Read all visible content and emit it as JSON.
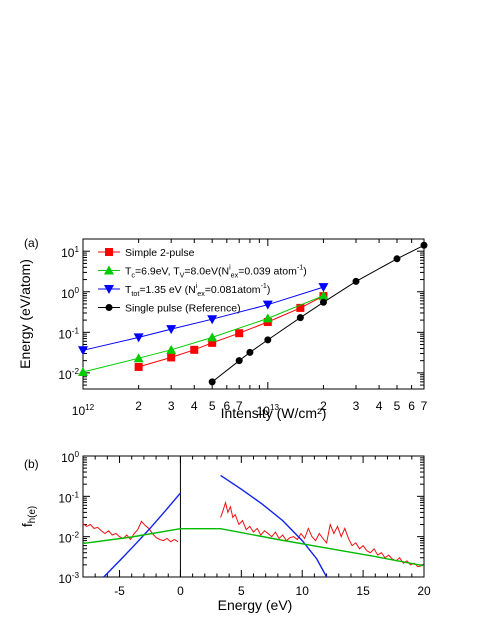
{
  "chart_data": [
    {
      "type": "line",
      "panel_label": "(a)",
      "xlabel": "Intensity (W/cm²)",
      "ylabel": "Energy (eV/atom)",
      "xscale": "log",
      "yscale": "log",
      "xlim": [
        1000000000000.0,
        70000000000000.0
      ],
      "ylim": [
        0.004,
        20
      ],
      "x_tick_labels": [
        {
          "x": 1000000000000.0,
          "base": "10",
          "exp": "12"
        },
        {
          "x": 2000000000000.0,
          "text": "2"
        },
        {
          "x": 3000000000000.0,
          "text": "3"
        },
        {
          "x": 4000000000000.0,
          "text": "4"
        },
        {
          "x": 5000000000000.0,
          "text": "5"
        },
        {
          "x": 6000000000000.0,
          "text": "6"
        },
        {
          "x": 7000000000000.0,
          "text": "7"
        },
        {
          "x": 10000000000000.0,
          "base": "10",
          "exp": "13"
        },
        {
          "x": 20000000000000.0,
          "text": "2"
        },
        {
          "x": 30000000000000.0,
          "text": "3"
        },
        {
          "x": 40000000000000.0,
          "text": "4"
        },
        {
          "x": 50000000000000.0,
          "text": "5"
        },
        {
          "x": 60000000000000.0,
          "text": "6"
        },
        {
          "x": 70000000000000.0,
          "text": "7"
        }
      ],
      "y_tick_labels": [
        {
          "y": 0.01,
          "base": "10",
          "exp": "-2"
        },
        {
          "y": 0.1,
          "base": "10",
          "exp": "-1"
        },
        {
          "y": 1,
          "base": "10",
          "exp": "0"
        },
        {
          "y": 10,
          "base": "10",
          "exp": "1"
        }
      ],
      "legend_position": "top-left",
      "series": [
        {
          "legend": [
            {
              "t": "Simple 2-pulse"
            }
          ],
          "color": "#ff0000",
          "marker": "square",
          "x": [
            2000000000000.0,
            3000000000000.0,
            4000000000000.0,
            5000000000000.0,
            7000000000000.0,
            10000000000000.0,
            15000000000000.0,
            20000000000000.0
          ],
          "y": [
            0.014,
            0.024,
            0.037,
            0.055,
            0.095,
            0.18,
            0.4,
            0.78
          ]
        },
        {
          "legend": [
            {
              "t": "T"
            },
            {
              "t": "c",
              "s": "sub"
            },
            {
              "t": "=6.9eV, T"
            },
            {
              "t": "V",
              "s": "sub"
            },
            {
              "t": "=8.0eV(N"
            },
            {
              "t": "i",
              "s": "sup"
            },
            {
              "t": "ex",
              "s": "sub"
            },
            {
              "t": "=0.039 atom"
            },
            {
              "t": "-1",
              "s": "sup"
            },
            {
              "t": ")"
            }
          ],
          "color": "#00cc00",
          "marker": "triangle-up",
          "x": [
            1000000000000.0,
            2000000000000.0,
            3000000000000.0,
            5000000000000.0,
            10000000000000.0,
            20000000000000.0
          ],
          "y": [
            0.0105,
            0.023,
            0.037,
            0.075,
            0.22,
            0.8
          ]
        },
        {
          "legend": [
            {
              "t": "T"
            },
            {
              "t": "tot",
              "s": "sub"
            },
            {
              "t": "=1.35 eV (N"
            },
            {
              "t": "i",
              "s": "sup"
            },
            {
              "t": "ex",
              "s": "sub"
            },
            {
              "t": "=0.081atom"
            },
            {
              "t": "-1",
              "s": "sup"
            },
            {
              "t": ")"
            }
          ],
          "color": "#0000ff",
          "marker": "triangle-down",
          "x": [
            1000000000000.0,
            2000000000000.0,
            3000000000000.0,
            5000000000000.0,
            10000000000000.0,
            20000000000000.0
          ],
          "y": [
            0.036,
            0.075,
            0.12,
            0.21,
            0.48,
            1.3
          ]
        },
        {
          "legend": [
            {
              "t": "Single pulse (Reference)"
            }
          ],
          "color": "#000000",
          "marker": "circle",
          "x": [
            5000000000000.0,
            7000000000000.0,
            8000000000000.0,
            10000000000000.0,
            15000000000000.0,
            20000000000000.0,
            30000000000000.0,
            50000000000000.0,
            70000000000000.0
          ],
          "y": [
            0.006,
            0.02,
            0.032,
            0.065,
            0.23,
            0.55,
            1.8,
            6.5,
            14
          ]
        }
      ]
    },
    {
      "type": "line",
      "panel_label": "(b)",
      "xlabel": "Energy (eV)",
      "ylabel": {
        "base": "f",
        "sub": "h(e)"
      },
      "yscale": "log",
      "xlim": [
        -8,
        20
      ],
      "ylim": [
        0.001,
        1
      ],
      "x_ticks": [
        -5,
        0,
        5,
        10,
        15,
        20
      ],
      "y_tick_labels": [
        {
          "y": 0.001,
          "base": "10",
          "exp": "-3"
        },
        {
          "y": 0.01,
          "base": "10",
          "exp": "-2"
        },
        {
          "y": 0.1,
          "base": "10",
          "exp": "-1"
        },
        {
          "y": 1,
          "base": "10",
          "exp": "0"
        }
      ],
      "vertical_line_x": 0,
      "series": [
        {
          "color": "#ee1111",
          "x": [
            -8,
            -7.7,
            -7.4,
            -7.1,
            -6.8,
            -6.5,
            -6.2,
            -5.9,
            -5.6,
            -5.3,
            -5.0,
            -4.7,
            -4.4,
            -4.1,
            -3.8,
            -3.5,
            -3.2,
            -2.9,
            -2.6,
            -2.3,
            -2.0,
            -1.7,
            -1.4,
            -1.1,
            -0.8,
            -0.5,
            -0.2,
            3.3,
            3.5,
            3.7,
            3.9,
            4.1,
            4.3,
            4.5,
            4.8,
            5.1,
            5.4,
            5.7,
            6.0,
            6.3,
            6.6,
            6.9,
            7.2,
            7.5,
            7.8,
            8.1,
            8.4,
            8.7,
            9.0,
            9.3,
            9.6,
            9.9,
            10.2,
            10.5,
            10.8,
            11.1,
            11.4,
            11.7,
            12.0,
            12.3,
            12.6,
            12.9,
            13.2,
            13.5,
            13.8,
            14.1,
            14.4,
            14.7,
            15.0,
            15.3,
            15.6,
            15.9,
            16.2,
            16.5,
            16.8,
            17.1,
            17.4,
            17.7,
            18.0,
            18.3,
            18.6,
            18.9,
            19.2,
            19.5,
            19.8
          ],
          "y": [
            0.021,
            0.018,
            0.02,
            0.016,
            0.017,
            0.014,
            0.012,
            0.014,
            0.011,
            0.012,
            0.01,
            0.009,
            0.011,
            0.0085,
            0.012,
            0.015,
            0.024,
            0.019,
            0.016,
            0.012,
            0.0095,
            0.0085,
            0.008,
            0.009,
            0.0075,
            0.0085,
            0.0075,
            0.03,
            0.045,
            0.07,
            0.04,
            0.055,
            0.03,
            0.035,
            0.02,
            0.025,
            0.015,
            0.018,
            0.013,
            0.016,
            0.011,
            0.014,
            0.012,
            0.01,
            0.013,
            0.009,
            0.011,
            0.008,
            0.0095,
            0.01,
            0.0085,
            0.012,
            0.009,
            0.016,
            0.01,
            0.008,
            0.012,
            0.009,
            0.007,
            0.02,
            0.012,
            0.018,
            0.01,
            0.016,
            0.009,
            0.006,
            0.007,
            0.005,
            0.006,
            0.0045,
            0.004,
            0.005,
            0.0035,
            0.004,
            0.003,
            0.0035,
            0.0028,
            0.0025,
            0.003,
            0.0022,
            0.0025,
            0.002,
            0.0022,
            0.0018,
            0.0019
          ]
        },
        {
          "color": "#1122ee",
          "x": [
            -6.3,
            -5.0,
            -3.7,
            -2.5,
            -1.2,
            0,
            3.3,
            5.0,
            6.7,
            8.4,
            10.0,
            11.2,
            12.0
          ],
          "y": [
            0.001,
            0.0025,
            0.0065,
            0.016,
            0.045,
            0.12,
            0.33,
            0.15,
            0.065,
            0.025,
            0.008,
            0.0028,
            0.001
          ]
        },
        {
          "color": "#00bb00",
          "x": [
            -8,
            -4,
            0,
            3.3,
            8,
            12,
            16,
            20
          ],
          "y": [
            0.0068,
            0.0098,
            0.0158,
            0.0158,
            0.0085,
            0.0052,
            0.0032,
            0.0019
          ]
        }
      ]
    }
  ]
}
